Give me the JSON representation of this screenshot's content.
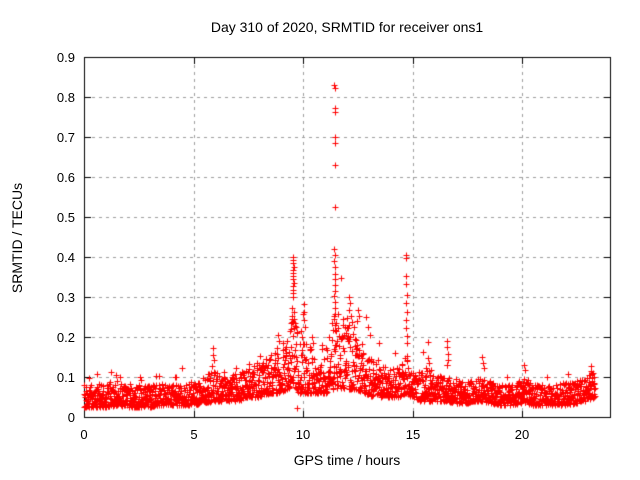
{
  "figure": {
    "background": "#ffffff"
  },
  "chart_data": {
    "type": "scatter",
    "title": "Day 310 of 2020, SRMTID for receiver ons1",
    "xlabel": "GPS time / hours",
    "ylabel": "SRMTID / TECUs",
    "xlim": [
      0,
      24
    ],
    "ylim": [
      0,
      0.9
    ],
    "xticks": {
      "values": [
        0,
        5,
        10,
        15,
        20
      ],
      "labels": [
        "0",
        "5",
        "10",
        "15",
        "20"
      ]
    },
    "yticks": {
      "values": [
        0,
        0.1,
        0.2,
        0.3,
        0.4,
        0.5,
        0.6,
        0.7,
        0.8,
        0.9
      ],
      "labels": [
        "0",
        "0.1",
        "0.2",
        "0.3",
        "0.4",
        "0.5",
        "0.6",
        "0.7",
        "0.8",
        "0.9"
      ]
    },
    "grid": true,
    "marker": "plus",
    "colors": {
      "points": "#ff0000",
      "grid": "#9e9e9e",
      "axis": "#000000",
      "text": "#000000"
    },
    "x_data_range": [
      0,
      23.3
    ],
    "n_baseline_points": 2300,
    "seed": 310,
    "baseline_envelope": [
      [
        0.0,
        0.025,
        0.085
      ],
      [
        0.5,
        0.025,
        0.08
      ],
      [
        1.0,
        0.025,
        0.08
      ],
      [
        1.5,
        0.03,
        0.09
      ],
      [
        2.0,
        0.025,
        0.075
      ],
      [
        2.5,
        0.025,
        0.08
      ],
      [
        3.0,
        0.025,
        0.08
      ],
      [
        3.5,
        0.03,
        0.085
      ],
      [
        4.0,
        0.03,
        0.08
      ],
      [
        4.5,
        0.03,
        0.085
      ],
      [
        5.0,
        0.03,
        0.09
      ],
      [
        5.5,
        0.035,
        0.1
      ],
      [
        5.9,
        0.04,
        0.12
      ],
      [
        6.2,
        0.04,
        0.1
      ],
      [
        6.6,
        0.04,
        0.1
      ],
      [
        7.0,
        0.04,
        0.11
      ],
      [
        7.5,
        0.05,
        0.12
      ],
      [
        8.0,
        0.05,
        0.14
      ],
      [
        8.5,
        0.06,
        0.15
      ],
      [
        9.0,
        0.06,
        0.18
      ],
      [
        9.3,
        0.07,
        0.21
      ],
      [
        9.55,
        0.08,
        0.27
      ],
      [
        9.8,
        0.06,
        0.21
      ],
      [
        10.0,
        0.06,
        0.19
      ],
      [
        10.4,
        0.06,
        0.17
      ],
      [
        10.8,
        0.06,
        0.15
      ],
      [
        11.1,
        0.06,
        0.18
      ],
      [
        11.35,
        0.07,
        0.26
      ],
      [
        11.55,
        0.07,
        0.28
      ],
      [
        11.8,
        0.07,
        0.22
      ],
      [
        12.1,
        0.07,
        0.24
      ],
      [
        12.4,
        0.07,
        0.22
      ],
      [
        12.8,
        0.06,
        0.19
      ],
      [
        13.2,
        0.05,
        0.16
      ],
      [
        13.6,
        0.05,
        0.13
      ],
      [
        14.0,
        0.05,
        0.12
      ],
      [
        14.4,
        0.05,
        0.13
      ],
      [
        14.7,
        0.06,
        0.16
      ],
      [
        15.0,
        0.05,
        0.12
      ],
      [
        15.4,
        0.04,
        0.11
      ],
      [
        15.7,
        0.04,
        0.13
      ],
      [
        16.0,
        0.04,
        0.1
      ],
      [
        16.5,
        0.04,
        0.11
      ],
      [
        17.0,
        0.035,
        0.09
      ],
      [
        17.5,
        0.035,
        0.09
      ],
      [
        18.0,
        0.04,
        0.1
      ],
      [
        18.5,
        0.035,
        0.09
      ],
      [
        19.0,
        0.03,
        0.08
      ],
      [
        19.5,
        0.03,
        0.08
      ],
      [
        20.0,
        0.035,
        0.095
      ],
      [
        20.5,
        0.03,
        0.08
      ],
      [
        21.0,
        0.03,
        0.08
      ],
      [
        21.5,
        0.03,
        0.08
      ],
      [
        22.0,
        0.03,
        0.085
      ],
      [
        22.5,
        0.035,
        0.09
      ],
      [
        22.9,
        0.04,
        0.1
      ],
      [
        23.3,
        0.05,
        0.115
      ]
    ],
    "peak_points": [
      [
        11.42,
        0.83
      ],
      [
        11.45,
        0.822
      ],
      [
        11.44,
        0.772
      ],
      [
        11.47,
        0.762
      ],
      [
        11.43,
        0.7
      ],
      [
        11.45,
        0.684
      ],
      [
        11.44,
        0.63
      ],
      [
        11.46,
        0.525
      ],
      [
        11.4,
        0.42
      ],
      [
        11.44,
        0.404
      ],
      [
        11.42,
        0.39
      ],
      [
        11.46,
        0.374
      ],
      [
        11.43,
        0.358
      ],
      [
        11.45,
        0.344
      ],
      [
        11.44,
        0.33
      ],
      [
        11.47,
        0.316
      ],
      [
        11.41,
        0.302
      ],
      [
        11.45,
        0.288
      ],
      [
        11.43,
        0.272
      ],
      [
        11.46,
        0.258
      ],
      [
        11.42,
        0.244
      ],
      [
        11.44,
        0.23
      ],
      [
        11.48,
        0.216
      ],
      [
        9.52,
        0.4
      ],
      [
        9.55,
        0.393
      ],
      [
        9.53,
        0.385
      ],
      [
        9.56,
        0.376
      ],
      [
        9.54,
        0.368
      ],
      [
        9.52,
        0.36
      ],
      [
        9.55,
        0.352
      ],
      [
        9.53,
        0.344
      ],
      [
        9.56,
        0.336
      ],
      [
        9.54,
        0.328
      ],
      [
        9.52,
        0.318
      ],
      [
        9.55,
        0.31
      ],
      [
        9.53,
        0.3
      ],
      [
        9.5,
        0.272
      ],
      [
        9.57,
        0.262
      ],
      [
        9.47,
        0.252
      ],
      [
        9.6,
        0.244
      ],
      [
        9.45,
        0.236
      ],
      [
        9.62,
        0.228
      ],
      [
        9.43,
        0.22
      ],
      [
        9.7,
        0.022
      ],
      [
        14.68,
        0.404
      ],
      [
        14.7,
        0.398
      ],
      [
        14.71,
        0.352
      ],
      [
        14.69,
        0.332
      ],
      [
        14.72,
        0.304
      ],
      [
        14.7,
        0.286
      ],
      [
        14.73,
        0.262
      ],
      [
        14.71,
        0.242
      ],
      [
        14.69,
        0.222
      ],
      [
        14.74,
        0.202
      ],
      [
        14.72,
        0.184
      ],
      [
        10.02,
        0.282
      ],
      [
        10.06,
        0.262
      ],
      [
        10.04,
        0.242
      ],
      [
        10.08,
        0.225
      ],
      [
        9.92,
        0.215
      ],
      [
        9.95,
        0.2
      ],
      [
        10.42,
        0.2
      ],
      [
        10.46,
        0.186
      ],
      [
        8.83,
        0.205
      ],
      [
        8.88,
        0.19
      ],
      [
        8.8,
        0.172
      ],
      [
        12.1,
        0.3
      ],
      [
        12.14,
        0.284
      ],
      [
        12.08,
        0.268
      ],
      [
        12.18,
        0.252
      ],
      [
        12.22,
        0.238
      ],
      [
        12.3,
        0.224
      ],
      [
        12.5,
        0.268
      ],
      [
        12.54,
        0.252
      ],
      [
        12.46,
        0.24
      ],
      [
        12.98,
        0.225
      ],
      [
        13.03,
        0.205
      ],
      [
        11.9,
        0.225
      ],
      [
        11.94,
        0.21
      ],
      [
        5.88,
        0.172
      ],
      [
        5.9,
        0.156
      ],
      [
        5.92,
        0.142
      ],
      [
        5.86,
        0.127
      ],
      [
        15.68,
        0.148
      ],
      [
        15.72,
        0.136
      ],
      [
        16.55,
        0.19
      ],
      [
        16.58,
        0.174
      ],
      [
        16.6,
        0.158
      ],
      [
        16.62,
        0.142
      ],
      [
        16.57,
        0.13
      ],
      [
        18.15,
        0.15
      ],
      [
        18.19,
        0.136
      ],
      [
        18.23,
        0.122
      ],
      [
        20.08,
        0.13
      ],
      [
        20.13,
        0.118
      ],
      [
        23.12,
        0.116
      ],
      [
        23.22,
        0.11
      ],
      [
        23.02,
        0.104
      ],
      [
        23.28,
        0.1
      ],
      [
        1.45,
        0.105
      ],
      [
        2.55,
        0.1
      ],
      [
        3.3,
        0.102
      ],
      [
        4.2,
        0.1
      ],
      [
        0.25,
        0.098
      ],
      [
        6.95,
        0.122
      ],
      [
        7.55,
        0.132
      ],
      [
        8.05,
        0.152
      ],
      [
        8.3,
        0.146
      ]
    ]
  }
}
